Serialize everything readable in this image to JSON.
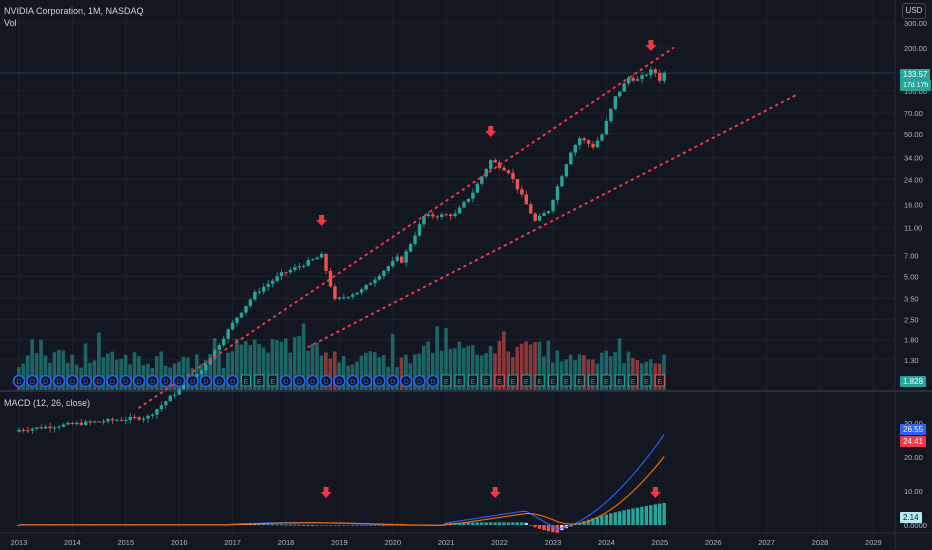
{
  "header": {
    "title": "NVIDIA Corporation, 1M, NASDAQ",
    "vol_label": "Vol",
    "currency": "USD",
    "macd_label": "MACD (12, 26, close)"
  },
  "price_scale": {
    "ticks": [
      "300.00",
      "200.00",
      "100.00",
      "70.00",
      "50.00",
      "34.00",
      "24.00",
      "16.00",
      "11.00",
      "7.00",
      "5.00",
      "3.50",
      "2.50",
      "1.80",
      "1.30"
    ],
    "last_price": "133.57",
    "countdown": "17d 17h",
    "volume_tag": "1.828"
  },
  "macd_scale": {
    "ticks": [
      "30.00",
      "20.00",
      "10.00",
      "0.0000"
    ],
    "macd_tag": "26.55",
    "signal_tag": "24.41",
    "hist_tag": "2.14"
  },
  "time_axis": {
    "labels": [
      "2013",
      "2014",
      "2015",
      "2016",
      "2017",
      "2018",
      "2019",
      "2020",
      "2021",
      "2022",
      "2023",
      "2024",
      "2025",
      "2026",
      "2027",
      "2028",
      "2029"
    ]
  },
  "event_markers": {
    "dividend_letter": "D",
    "earnings_letter": "E"
  },
  "colors": {
    "background": "#131722",
    "up": "#26a69a",
    "down": "#ef5350",
    "macd_line": "#2962ff",
    "signal_line": "#ff6d00",
    "channel": "#f23645",
    "arrow": "#f23645",
    "dividend": "#2962ff",
    "earnings_up": "#26a69a",
    "earnings_down": "#ef5350"
  },
  "chart_data": {
    "type": "candlestick",
    "symbol": "NVIDIA Corporation",
    "interval": "1M",
    "exchange": "NASDAQ",
    "y_scale": "log",
    "ylim": [
      0.9,
      320
    ],
    "x_range": [
      "2013-01",
      "2029-06"
    ],
    "last_close": 133.57,
    "price_anchors": [
      [
        "2015-06",
        0.52
      ],
      [
        "2016-06",
        1.1
      ],
      [
        "2017-02",
        2.6
      ],
      [
        "2017-06",
        3.8
      ],
      [
        "2017-12",
        5.2
      ],
      [
        "2018-04",
        5.9
      ],
      [
        "2018-09",
        7.0
      ],
      [
        "2018-12",
        3.4
      ],
      [
        "2019-06",
        4.0
      ],
      [
        "2019-12",
        5.9
      ],
      [
        "2020-02",
        6.7
      ],
      [
        "2020-03",
        6.4
      ],
      [
        "2020-08",
        13.2
      ],
      [
        "2021-03",
        13.6
      ],
      [
        "2021-07",
        19.5
      ],
      [
        "2021-11",
        32.6
      ],
      [
        "2022-03",
        27.3
      ],
      [
        "2022-09",
        12.2
      ],
      [
        "2022-12",
        14.6
      ],
      [
        "2023-05",
        37.8
      ],
      [
        "2023-07",
        46.7
      ],
      [
        "2023-10",
        40.8
      ],
      [
        "2023-12",
        49.5
      ],
      [
        "2024-03",
        90.3
      ],
      [
        "2024-06",
        123.5
      ],
      [
        "2024-08",
        119.4
      ],
      [
        "2024-11",
        138.3
      ],
      [
        "2024-12",
        134.3
      ],
      [
        "2025-01",
        120.1
      ],
      [
        "2025-02",
        133.57
      ]
    ],
    "channel_upper": [
      [
        "2015-04",
        0.6
      ],
      [
        "2025-04",
        200
      ]
    ],
    "channel_lower": [
      [
        "2018-06",
        1.6
      ],
      [
        "2027-08",
        95
      ]
    ],
    "macd": {
      "params": [
        12,
        26,
        "close"
      ],
      "ylim": [
        -2,
        32
      ],
      "macd_last": 26.55,
      "signal_last": 24.41,
      "histogram_last": 2.14
    },
    "arrows": [
      {
        "pane": "price",
        "date": "2018-09"
      },
      {
        "pane": "price",
        "date": "2021-11"
      },
      {
        "pane": "price",
        "date": "2024-11"
      },
      {
        "pane": "macd",
        "date": "2018-10"
      },
      {
        "pane": "macd",
        "date": "2021-12"
      },
      {
        "pane": "macd",
        "date": "2024-12"
      }
    ]
  }
}
